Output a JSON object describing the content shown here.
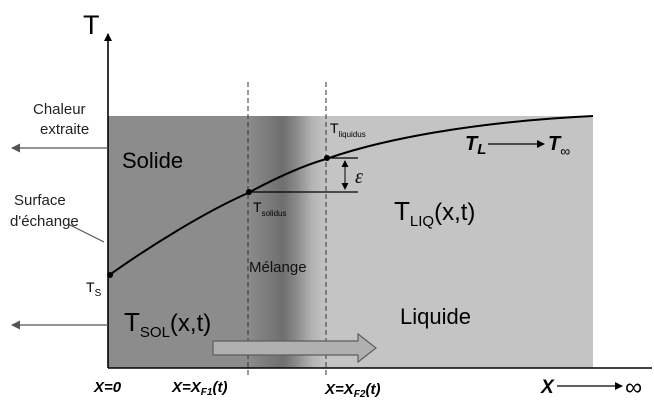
{
  "axes": {
    "t_label": "T",
    "x_label": "X",
    "x_infinity": "∞"
  },
  "left_labels": {
    "chaleur_line1": "Chaleur",
    "chaleur_line2": "extraite",
    "surface_line1": "Surface",
    "surface_line2": "d'échange"
  },
  "regions": {
    "solide": "Solide",
    "melange": "Mélange",
    "liquide": "Liquide"
  },
  "temperatures": {
    "ts_main": "T",
    "ts_sub": "S",
    "tsolidus_main": "T",
    "tsolidus_sub": "solidus",
    "tliquidus_main": "T",
    "tliquidus_sub": "liquidus",
    "tsol_main": "T",
    "tsol_sub": "SOL",
    "tsol_args": "(x,t)",
    "tliq_main": "T",
    "tliq_sub": "LIQ",
    "tliq_args": "(x,t)",
    "epsilon": "ε",
    "tl_main": "T",
    "tl_sub": "L",
    "tinf_main": "T",
    "tinf_sub": "∞"
  },
  "bottom_labels": {
    "x0": "X=0",
    "xf1_pre": "X=X",
    "xf1_sub": "F1",
    "xf1_post": "(t)",
    "xf2_pre": "X=X",
    "xf2_sub": "F2",
    "xf2_post": "(t)"
  },
  "colors": {
    "solid": "#8c8c8c",
    "liquid": "#c4c4c4",
    "mush_dark": "#6e6e6e",
    "mush_mid": "#a2a2a2",
    "ink": "#000000",
    "arrow": "#5a5a5a"
  }
}
